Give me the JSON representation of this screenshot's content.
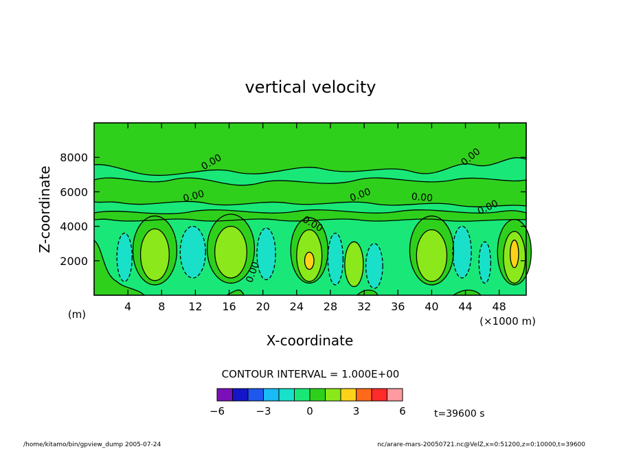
{
  "chart_data": {
    "type": "heatmap",
    "title": "vertical velocity",
    "xlabel": "X-coordinate",
    "ylabel": "Z-coordinate",
    "x_unit": "(×1000 m)",
    "y_unit": "(m)",
    "x_ticks": [
      4,
      8,
      12,
      16,
      20,
      24,
      28,
      32,
      36,
      40,
      44,
      48
    ],
    "y_ticks": [
      2000,
      4000,
      6000,
      8000
    ],
    "xlim": [
      0,
      51.2
    ],
    "ylim": [
      0,
      10000
    ],
    "contour_interval_label": "CONTOUR INTERVAL = 1.000E+00",
    "contour_labels": [
      "0.00",
      "0.00",
      "0.00",
      "0.00",
      "0.00",
      "0.00",
      "0.00",
      "0.00"
    ],
    "colorbar": {
      "colors": [
        "#7a11b8",
        "#1515c8",
        "#1f57ee",
        "#19baf5",
        "#19e0c8",
        "#19e878",
        "#2fd01c",
        "#8be81a",
        "#ffd21a",
        "#ff6a1a",
        "#ff2a2a",
        "#ff9aa0"
      ],
      "levels": [
        -6,
        -5,
        -4,
        -3,
        -2,
        -1,
        0,
        1,
        2,
        3,
        4,
        5,
        6
      ],
      "tick_labels": [
        "−6",
        "−3",
        "0",
        "3",
        "6"
      ]
    },
    "time_label": "t=39600 s",
    "footer_left": "/home/kitamo/bin/gpview_dump  2005-07-24",
    "footer_right": "nc/arare-mars-20050721.nc@VelZ,x=0:51200,z=0:10000,t=39600"
  }
}
